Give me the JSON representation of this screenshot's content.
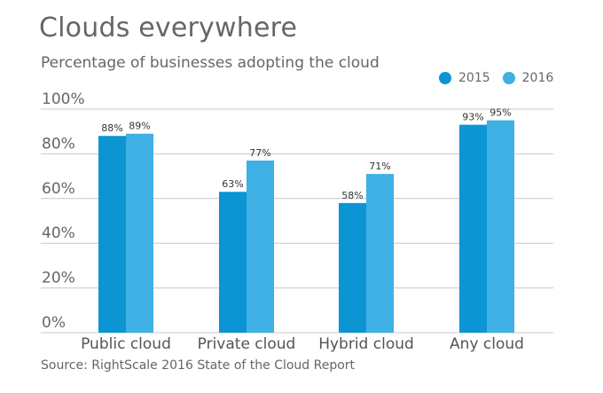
{
  "chart_data": {
    "type": "bar",
    "title": "Clouds everywhere",
    "subtitle": "Percentage of businesses adopting the cloud",
    "source": "Source: RightScale 2016 State of the Cloud Report",
    "categories": [
      "Public cloud",
      "Private cloud",
      "Hybrid cloud",
      "Any cloud"
    ],
    "series": [
      {
        "name": "2015",
        "values": [
          88,
          63,
          58,
          93
        ],
        "labels": [
          "88%",
          "63%",
          "58%",
          "93%"
        ],
        "color": "#0b95d3"
      },
      {
        "name": "2016",
        "values": [
          89,
          77,
          71,
          95
        ],
        "labels": [
          "89%",
          "77%",
          "71%",
          "95%"
        ],
        "color": "#3fb0e3"
      }
    ],
    "ylim": [
      0,
      100
    ],
    "yticks": [
      0,
      20,
      40,
      60,
      80,
      100
    ],
    "ytick_labels": [
      "0%",
      "20%",
      "40%",
      "60%",
      "80%",
      "100%"
    ],
    "grid": true,
    "legend_position": "top-right"
  }
}
